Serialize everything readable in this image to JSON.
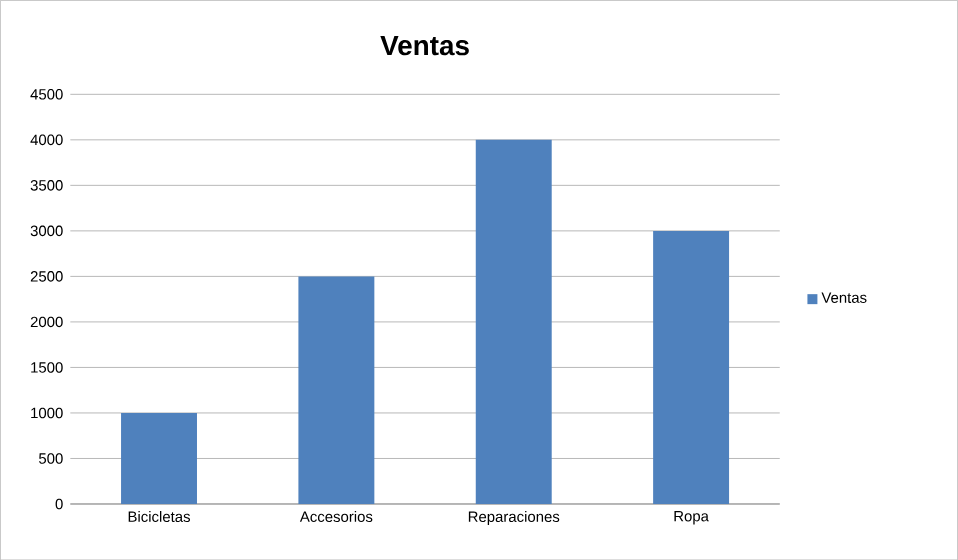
{
  "chart_data": {
    "type": "bar",
    "title": "Ventas",
    "categories": [
      "Bicicletas",
      "Accesorios",
      "Reparaciones",
      "Ropa"
    ],
    "series": [
      {
        "name": "Ventas",
        "color": "#4f81bd",
        "values": [
          1000,
          2500,
          4000,
          3000
        ]
      }
    ],
    "ylim": [
      0,
      4500
    ],
    "yticks": [
      0,
      500,
      1000,
      1500,
      2000,
      2500,
      3000,
      3500,
      4000,
      4500
    ],
    "grid": "y",
    "legend": "right"
  }
}
